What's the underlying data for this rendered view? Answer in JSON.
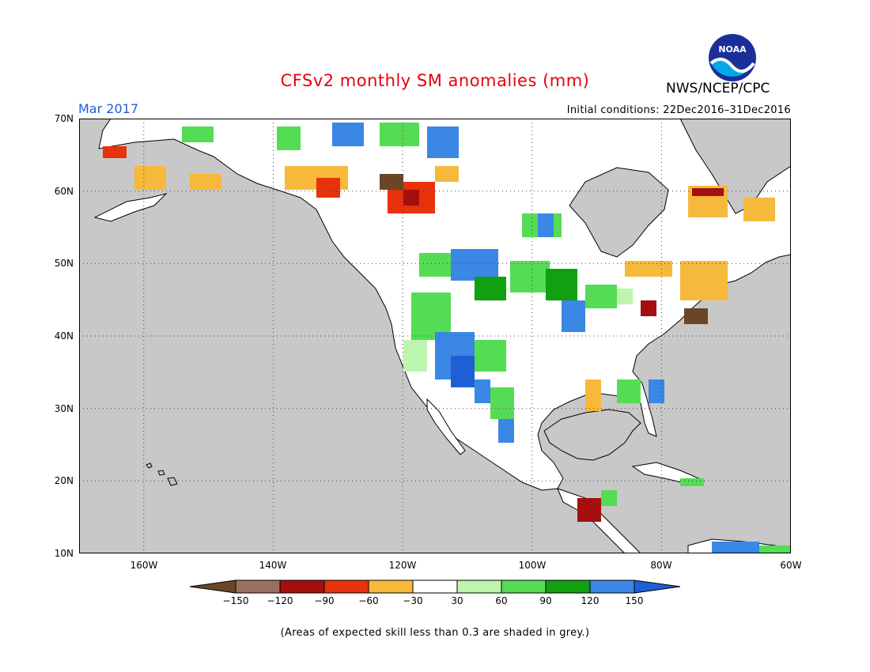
{
  "title": "CFSv2 monthly SM anomalies (mm)",
  "agency": "NWS/NCEP/CPC",
  "logo_text": "NOAA",
  "period": "Mar 2017",
  "initial_conditions": "Initial conditions: 22Dec2016–31Dec2016",
  "lat_labels": [
    "70N",
    "60N",
    "50N",
    "40N",
    "30N",
    "20N",
    "10N"
  ],
  "lon_labels": [
    "160W",
    "140W",
    "120W",
    "100W",
    "80W",
    "60W"
  ],
  "legend": {
    "labels": [
      "−150",
      "−120",
      "−90",
      "−60",
      "−30",
      "30",
      "60",
      "90",
      "120",
      "150"
    ],
    "colors": [
      "#6b4626",
      "#9c7060",
      "#a50f0f",
      "#e8320b",
      "#f6b93b",
      "#ffffff",
      "#bdf5b0",
      "#55dc55",
      "#10a010",
      "#3a87e6",
      "#1f5fd6"
    ]
  },
  "footnote": "(Areas of expected skill less than 0.3 are shaded in grey.)",
  "colors": {
    "ocean": "#c8c8c8",
    "land": "#ffffff",
    "title": "#e8000b",
    "period": "#1f5fd6"
  }
}
